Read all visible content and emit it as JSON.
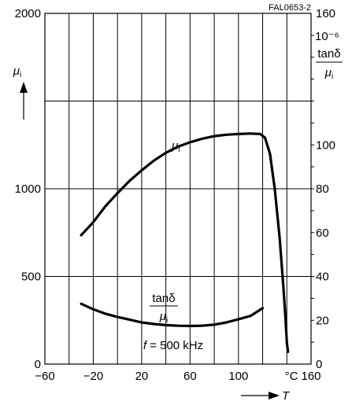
{
  "figure_ref": "FAL0653-2",
  "chart_data": {
    "type": "line",
    "x": {
      "label": "T",
      "unit": "°C",
      "range": [
        -60,
        160
      ],
      "ticks": [
        -60,
        -20,
        20,
        60,
        100,
        160
      ]
    },
    "y_left": {
      "label": "μi",
      "range": [
        0,
        2000
      ],
      "ticks": [
        0,
        500,
        1000,
        2000
      ]
    },
    "y_right": {
      "label": "tanδ/μi",
      "scale_label": "10⁻⁶",
      "range": [
        0,
        160
      ],
      "ticks": [
        0,
        20,
        40,
        60,
        80,
        100,
        160
      ]
    },
    "grid": true,
    "condition": "f = 500 kHz",
    "series": [
      {
        "name": "μi",
        "axis": "left",
        "points": [
          [
            -30,
            735
          ],
          [
            -20,
            810
          ],
          [
            -10,
            900
          ],
          [
            0,
            975
          ],
          [
            10,
            1045
          ],
          [
            20,
            1105
          ],
          [
            30,
            1160
          ],
          [
            40,
            1205
          ],
          [
            50,
            1240
          ],
          [
            60,
            1265
          ],
          [
            70,
            1285
          ],
          [
            80,
            1300
          ],
          [
            90,
            1308
          ],
          [
            100,
            1312
          ],
          [
            110,
            1315
          ],
          [
            118,
            1312
          ],
          [
            122,
            1290
          ],
          [
            126,
            1200
          ],
          [
            130,
            1000
          ],
          [
            134,
            720
          ],
          [
            137,
            450
          ],
          [
            139,
            250
          ],
          [
            140,
            120
          ],
          [
            141,
            70
          ]
        ]
      },
      {
        "name": "tanδ/μi",
        "axis": "right",
        "points": [
          [
            -30,
            27.5
          ],
          [
            -20,
            25
          ],
          [
            -10,
            23
          ],
          [
            0,
            21.5
          ],
          [
            10,
            20.3
          ],
          [
            20,
            19
          ],
          [
            30,
            18.3
          ],
          [
            40,
            17.8
          ],
          [
            50,
            17.5
          ],
          [
            60,
            17.4
          ],
          [
            70,
            17.5
          ],
          [
            80,
            18
          ],
          [
            90,
            19
          ],
          [
            100,
            20.5
          ],
          [
            110,
            22
          ],
          [
            120,
            25.5
          ]
        ]
      }
    ]
  }
}
